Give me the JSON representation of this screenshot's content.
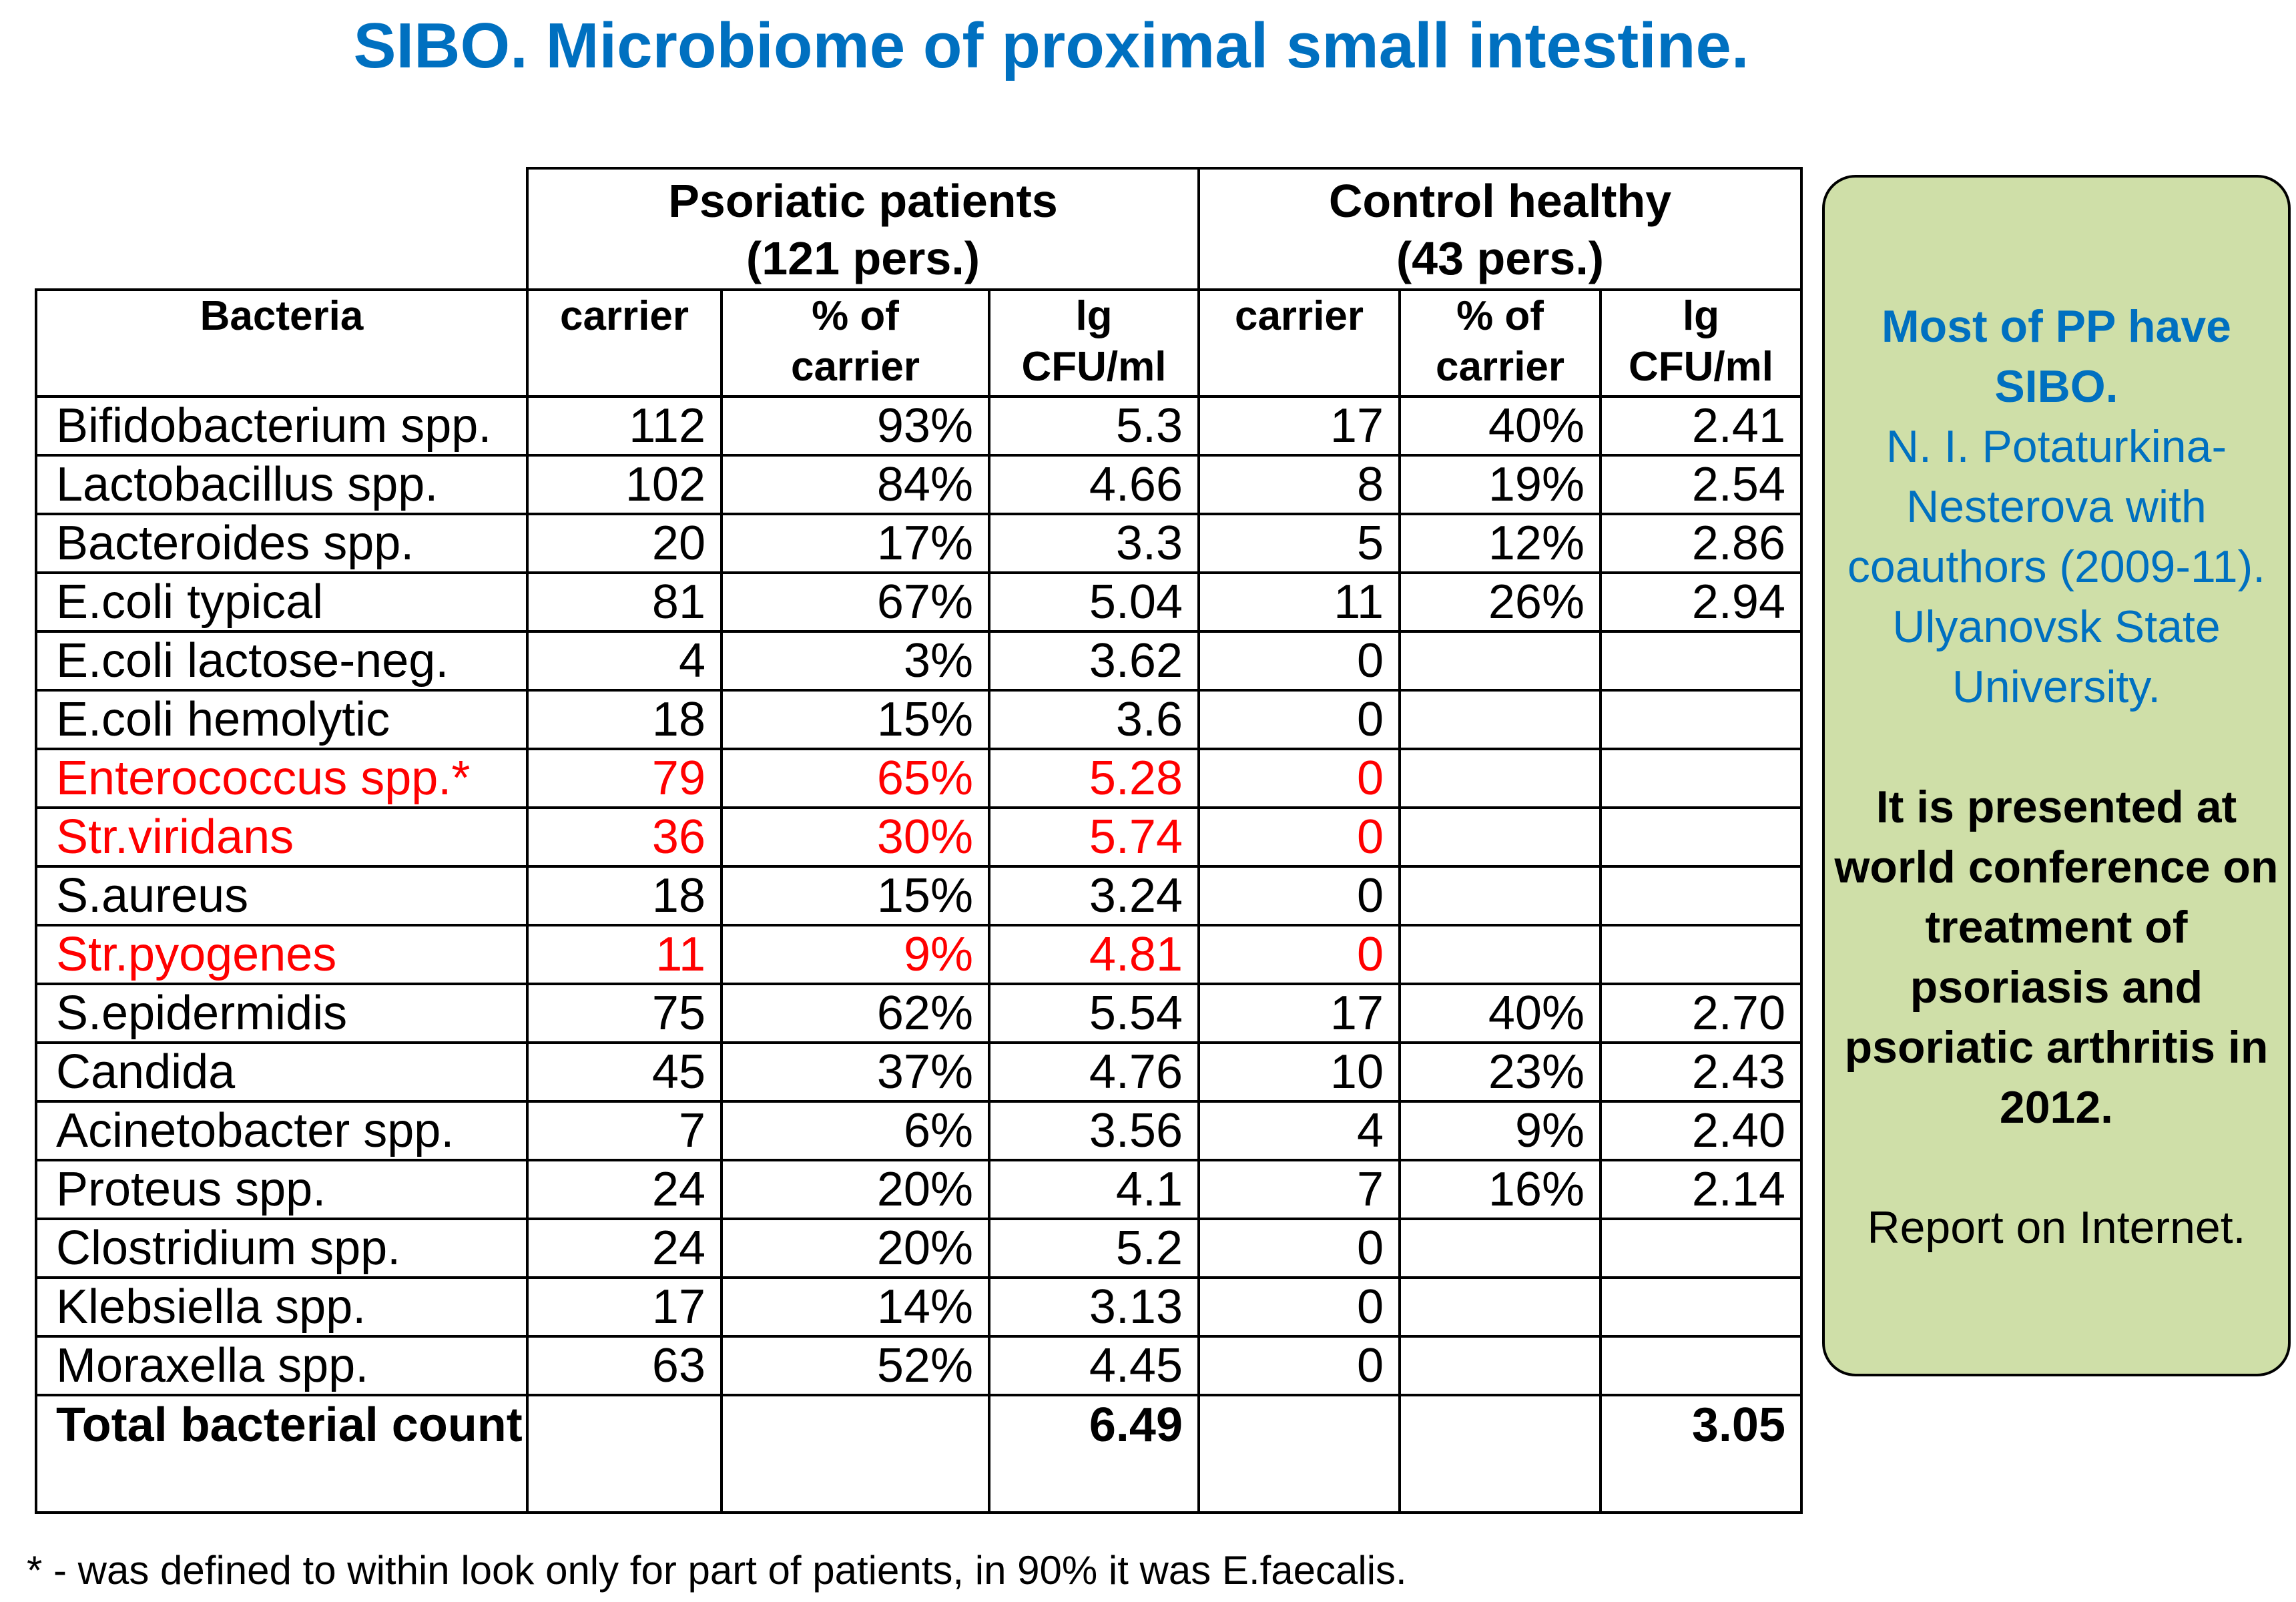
{
  "title": "SIBO. Microbiome of proximal small intestine.",
  "groups": {
    "psoriatic": {
      "line1": "Psoriatic patients",
      "line2": "(121 pers.)"
    },
    "control": {
      "line1": "Control healthy",
      "line2": "(43 pers.)"
    }
  },
  "columns": {
    "bacteria": "Bacteria",
    "carrier": "carrier",
    "pct_line1": "% of",
    "pct_line2": "carrier",
    "lg_line1": "lg",
    "lg_line2": "CFU/ml"
  },
  "rows": [
    {
      "name": "Bifidobacterium spp.",
      "pp_carrier": "112",
      "pp_pct": "93%",
      "pp_lg": "5.3",
      "ch_carrier": "17",
      "ch_pct": "40%",
      "ch_lg": "2.41"
    },
    {
      "name": "Lactobacillus spp.",
      "pp_carrier": "102",
      "pp_pct": "84%",
      "pp_lg": "4.66",
      "ch_carrier": "8",
      "ch_pct": "19%",
      "ch_lg": "2.54"
    },
    {
      "name": "Bacteroides spp.",
      "pp_carrier": "20",
      "pp_pct": "17%",
      "pp_lg": "3.3",
      "ch_carrier": "5",
      "ch_pct": "12%",
      "ch_lg": "2.86"
    },
    {
      "name": "E.coli typical",
      "pp_carrier": "81",
      "pp_pct": "67%",
      "pp_lg": "5.04",
      "ch_carrier": "11",
      "ch_pct": "26%",
      "ch_lg": "2.94"
    },
    {
      "name": "E.coli lactose-neg.",
      "pp_carrier": "4",
      "pp_pct": "3%",
      "pp_lg": "3.62",
      "ch_carrier": "0",
      "ch_pct": "",
      "ch_lg": ""
    },
    {
      "name": "E.coli hemolytic",
      "pp_carrier": "18",
      "pp_pct": "15%",
      "pp_lg": "3.6",
      "ch_carrier": "0",
      "ch_pct": "",
      "ch_lg": ""
    },
    {
      "name": "Enterococcus spp.*",
      "pp_carrier": "79",
      "pp_pct": "65%",
      "pp_lg": "5.28",
      "ch_carrier": "0",
      "ch_pct": "",
      "ch_lg": "",
      "highlight": true
    },
    {
      "name": "Str.viridans",
      "pp_carrier": "36",
      "pp_pct": "30%",
      "pp_lg": "5.74",
      "ch_carrier": "0",
      "ch_pct": "",
      "ch_lg": "",
      "highlight": true
    },
    {
      "name": "S.aureus",
      "pp_carrier": "18",
      "pp_pct": "15%",
      "pp_lg": "3.24",
      "ch_carrier": "0",
      "ch_pct": "",
      "ch_lg": ""
    },
    {
      "name": "Str.pyogenes",
      "pp_carrier": "11",
      "pp_pct": "9%",
      "pp_lg": "4.81",
      "ch_carrier": "0",
      "ch_pct": "",
      "ch_lg": "",
      "highlight": true
    },
    {
      "name": "S.epidermidis",
      "pp_carrier": "75",
      "pp_pct": "62%",
      "pp_lg": "5.54",
      "ch_carrier": "17",
      "ch_pct": "40%",
      "ch_lg": "2.70"
    },
    {
      "name": "Candida",
      "pp_carrier": "45",
      "pp_pct": "37%",
      "pp_lg": "4.76",
      "ch_carrier": "10",
      "ch_pct": "23%",
      "ch_lg": "2.43"
    },
    {
      "name": "Acinetobacter spp.",
      "pp_carrier": "7",
      "pp_pct": "6%",
      "pp_lg": "3.56",
      "ch_carrier": "4",
      "ch_pct": "9%",
      "ch_lg": "2.40"
    },
    {
      "name": "Proteus spp.",
      "pp_carrier": "24",
      "pp_pct": "20%",
      "pp_lg": "4.1",
      "ch_carrier": "7",
      "ch_pct": "16%",
      "ch_lg": "2.14"
    },
    {
      "name": "Clostridium spp.",
      "pp_carrier": "24",
      "pp_pct": "20%",
      "pp_lg": "5.2",
      "ch_carrier": "0",
      "ch_pct": "",
      "ch_lg": ""
    },
    {
      "name": "Klebsiella spp.",
      "pp_carrier": "17",
      "pp_pct": "14%",
      "pp_lg": "3.13",
      "ch_carrier": "0",
      "ch_pct": "",
      "ch_lg": ""
    },
    {
      "name": "Moraxella spp.",
      "pp_carrier": "63",
      "pp_pct": "52%",
      "pp_lg": "4.45",
      "ch_carrier": "0",
      "ch_pct": "",
      "ch_lg": ""
    }
  ],
  "total": {
    "name": "Total bacterial count",
    "pp_lg": "6.49",
    "ch_lg": "3.05"
  },
  "side_note": {
    "headline": "Most of PP have SIBO.",
    "source": "N. I. Potaturkina-Nesterova with coauthors (2009-11). Ulyanovsk State University.",
    "presented": "It is presented at world conference on treatment of psoriasis and psoriatic arthritis in 2012.",
    "report": "Report on Internet."
  },
  "footnote": "* - was defined to within look only for part of patients, in 90% it was E.faecalis.",
  "colors": {
    "title": "#0070c0",
    "highlight_red": "#ff0000",
    "side_box_bg": "#cfdfa8"
  }
}
